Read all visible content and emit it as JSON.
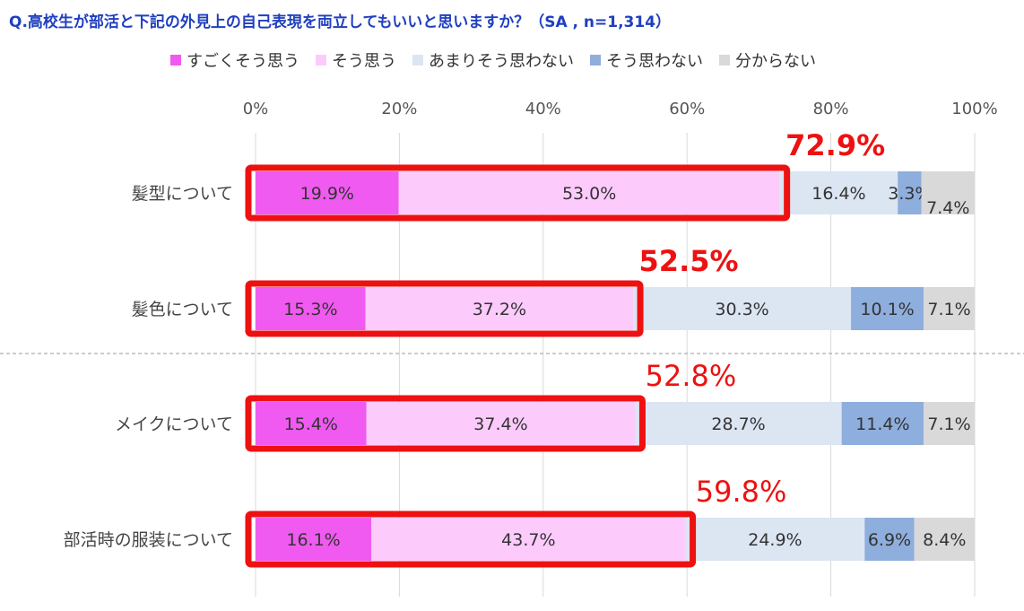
{
  "title": "Q.高校生が部活と下記の外見上の自己表現を両立してもいいと思いますか？（SA , n=1,314）",
  "chart_data": {
    "type": "bar",
    "stacked": true,
    "orientation": "horizontal",
    "xlim": [
      0,
      100
    ],
    "x_ticks": [
      "0%",
      "20%",
      "40%",
      "60%",
      "80%",
      "100%"
    ],
    "legend_position": "top",
    "grid": true,
    "categories": [
      "髪型について",
      "髪色について",
      "メイクについて",
      "部活時の服装について"
    ],
    "series": [
      {
        "name": "すごくそう思う",
        "color": "#f05af0",
        "values": [
          19.9,
          15.3,
          15.4,
          16.1
        ],
        "labels": [
          "19.9%",
          "15.3%",
          "15.4%",
          "16.1%"
        ]
      },
      {
        "name": "そう思う",
        "color": "#fccbfc",
        "values": [
          53.0,
          37.2,
          37.4,
          43.7
        ],
        "labels": [
          "53.0%",
          "37.2%",
          "37.4%",
          "43.7%"
        ]
      },
      {
        "name": "あまりそう思わない",
        "color": "#dce5f2",
        "values": [
          16.4,
          30.3,
          28.7,
          24.9
        ],
        "labels": [
          "16.4%",
          "30.3%",
          "28.7%",
          "24.9%"
        ]
      },
      {
        "name": "そう思わない",
        "color": "#8eaedd",
        "values": [
          3.3,
          10.1,
          11.4,
          6.9
        ],
        "labels": [
          "3.3%",
          "10.1%",
          "11.4%",
          "6.9%"
        ]
      },
      {
        "name": "分からない",
        "color": "#d9d9d9",
        "values": [
          7.4,
          7.1,
          7.1,
          8.4
        ],
        "labels": [
          "7.4%",
          "7.1%",
          "7.1%",
          "8.4%"
        ]
      }
    ],
    "highlight_totals": [
      "72.9%",
      "52.5%",
      "52.8%",
      "59.8%"
    ],
    "highlight_color": "#ee1111"
  }
}
